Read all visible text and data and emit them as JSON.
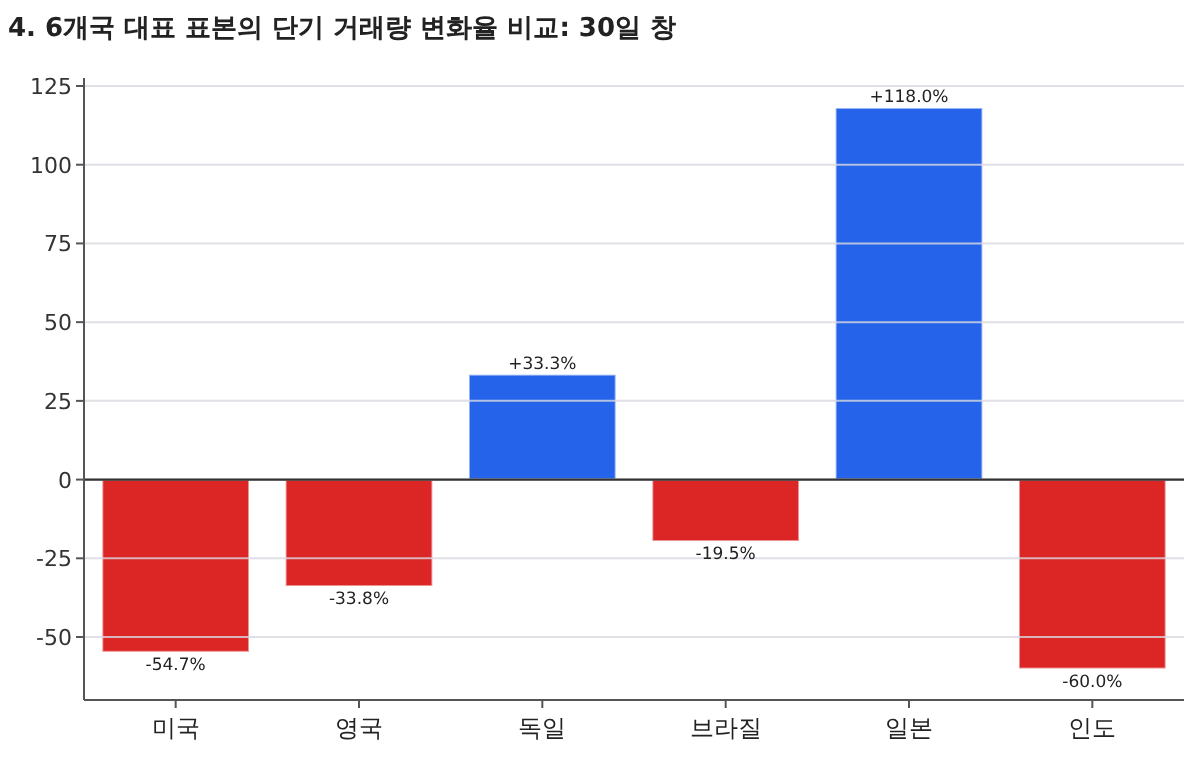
{
  "chart_data": {
    "type": "bar",
    "title": "4. 6개국 대표 표본의 단기 거래량 변화율 비교: 30일 창",
    "categories": [
      "미국",
      "영국",
      "독일",
      "브라질",
      "일본",
      "인도"
    ],
    "values": [
      -54.7,
      -33.8,
      33.3,
      -19.5,
      118.0,
      -60.0
    ],
    "colors": [
      "#dc2626",
      "#dc2626",
      "#2563eb",
      "#dc2626",
      "#2563eb",
      "#dc2626"
    ],
    "value_labels": [
      "-54.7%",
      "-33.8%",
      "+33.3%",
      "-19.5%",
      "+118.0%",
      "-60.0%"
    ],
    "ylim": [
      -70,
      125
    ],
    "yticks": [
      -50,
      -25,
      0,
      25,
      50,
      75,
      100,
      125
    ],
    "ref_lines": [
      {
        "axis": "y",
        "value": 0,
        "color": "#333333"
      }
    ],
    "grid": "y"
  }
}
